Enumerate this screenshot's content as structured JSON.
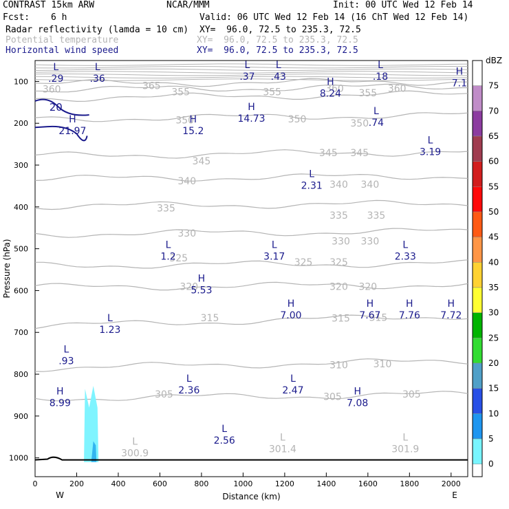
{
  "header": {
    "model": "CONTRAST 15km ARW",
    "org": "NCAR/MMM",
    "init": "Init: 00 UTC Wed 12 Feb 14",
    "fcst_label": "Fcst:",
    "fcst_value": "6 h",
    "valid": "Valid: 06 UTC Wed 12 Feb 14 (16 ChT Wed 12 Feb 14)",
    "fields": [
      {
        "name": "Radar reflectivity (lamda = 10 cm)",
        "xy": "XY=  96.0, 72.5 to 235.3, 72.5"
      },
      {
        "name": "Potential temperature",
        "xy": "XY=  96.0, 72.5 to 235.3, 72.5"
      },
      {
        "name": "Horizontal wind speed",
        "xy": "XY=  96.0, 72.5 to 235.3, 72.5"
      }
    ]
  },
  "colors": {
    "theta": "#b4b4b4",
    "wind": "#1a1a8c",
    "refl_light": "#7ff4ff",
    "refl_mid": "#33b5f0"
  },
  "chart_data": {
    "type": "cross-section",
    "xlabel": "Distance (km)",
    "ylabel": "Pressure (hPa)",
    "xlim": [
      0,
      2080
    ],
    "ylim": [
      1045,
      50
    ],
    "x_ticks": [
      "0",
      "200",
      "400",
      "600",
      "800",
      "1000",
      "1200",
      "1400",
      "1600",
      "1800",
      "2000"
    ],
    "x_tick_values": [
      0,
      200,
      400,
      600,
      800,
      1000,
      1200,
      1400,
      1600,
      1800,
      2000
    ],
    "y_ticks": [
      "100",
      "200",
      "300",
      "400",
      "500",
      "600",
      "700",
      "800",
      "900",
      "1000"
    ],
    "y_tick_values": [
      100,
      200,
      300,
      400,
      500,
      600,
      700,
      800,
      900,
      1000
    ],
    "west_label": "W",
    "east_label": "E",
    "theta_levels": [
      {
        "value": 305,
        "p_left": 858,
        "p_right": 848,
        "labels": [
          {
            "text": "305",
            "x": 620,
            "p": 848
          },
          {
            "text": "305",
            "x": 1430,
            "p": 853
          },
          {
            "text": "305",
            "x": 1810,
            "p": 848
          }
        ]
      },
      {
        "value": 310,
        "p_left": 785,
        "p_right": 768,
        "labels": [
          {
            "text": "310",
            "x": 1460,
            "p": 778
          },
          {
            "text": "310",
            "x": 1670,
            "p": 775
          }
        ]
      },
      {
        "value": 315,
        "p_left": 685,
        "p_right": 660,
        "labels": [
          {
            "text": "315",
            "x": 840,
            "p": 665
          },
          {
            "text": "315",
            "x": 1470,
            "p": 666
          },
          {
            "text": "315",
            "x": 1650,
            "p": 664
          }
        ]
      },
      {
        "value": 320,
        "p_left": 592,
        "p_right": 586,
        "labels": [
          {
            "text": "320",
            "x": 740,
            "p": 590
          },
          {
            "text": "320",
            "x": 1460,
            "p": 590
          },
          {
            "text": "320",
            "x": 1600,
            "p": 590
          }
        ]
      },
      {
        "value": 325,
        "p_left": 540,
        "p_right": 535,
        "labels": [
          {
            "text": "325",
            "x": 690,
            "p": 522
          },
          {
            "text": "325",
            "x": 1290,
            "p": 532
          },
          {
            "text": "325",
            "x": 1460,
            "p": 532
          }
        ]
      },
      {
        "value": 330,
        "p_left": 465,
        "p_right": 458,
        "labels": [
          {
            "text": "330",
            "x": 730,
            "p": 463
          },
          {
            "text": "330",
            "x": 1470,
            "p": 482
          },
          {
            "text": "330",
            "x": 1610,
            "p": 482
          }
        ]
      },
      {
        "value": 335,
        "p_left": 398,
        "p_right": 392,
        "labels": [
          {
            "text": "335",
            "x": 630,
            "p": 403
          },
          {
            "text": "335",
            "x": 1460,
            "p": 420
          },
          {
            "text": "335",
            "x": 1640,
            "p": 420
          }
        ]
      },
      {
        "value": 340,
        "p_left": 333,
        "p_right": 326,
        "labels": [
          {
            "text": "340",
            "x": 730,
            "p": 338
          },
          {
            "text": "340",
            "x": 1460,
            "p": 346
          },
          {
            "text": "340",
            "x": 1610,
            "p": 346
          }
        ]
      },
      {
        "value": 345,
        "p_left": 278,
        "p_right": 268,
        "labels": [
          {
            "text": "345",
            "x": 800,
            "p": 290
          },
          {
            "text": "345",
            "x": 1410,
            "p": 270
          },
          {
            "text": "345",
            "x": 1560,
            "p": 270
          }
        ]
      },
      {
        "value": 350,
        "p_left": 190,
        "p_right": 180,
        "labels": [
          {
            "text": "350",
            "x": 720,
            "p": 192
          },
          {
            "text": "350",
            "x": 1260,
            "p": 190
          },
          {
            "text": "350",
            "x": 1560,
            "p": 200
          }
        ]
      },
      {
        "value": 355,
        "p_left": 140,
        "p_right": 130,
        "labels": [
          {
            "text": "355",
            "x": 700,
            "p": 125
          },
          {
            "text": "355",
            "x": 1140,
            "p": 125
          },
          {
            "text": "355",
            "x": 1600,
            "p": 127
          }
        ]
      },
      {
        "value": 360,
        "p_left": 120,
        "p_right": 112,
        "labels": [
          {
            "text": "360",
            "x": 80,
            "p": 118
          },
          {
            "text": "360",
            "x": 1440,
            "p": 117
          },
          {
            "text": "360",
            "x": 1740,
            "p": 117
          }
        ]
      },
      {
        "value": 365,
        "p_left": 105,
        "p_right": 100,
        "labels": [
          {
            "text": "365",
            "x": 560,
            "p": 110
          }
        ]
      }
    ],
    "theta_surface_minima": [
      {
        "text": "L",
        "value": "300.9",
        "x": 480,
        "p": 975
      },
      {
        "text": "L",
        "value": "301.4",
        "x": 1190,
        "p": 965
      },
      {
        "text": "L",
        "value": "301.9",
        "x": 1780,
        "p": 965
      }
    ],
    "wind_extrema": [
      {
        "type": "L",
        "value": ".29",
        "x": 100,
        "p": 80
      },
      {
        "type": "L",
        "value": ".36",
        "x": 300,
        "p": 80
      },
      {
        "type": "L",
        "value": ".37",
        "x": 1020,
        "p": 75
      },
      {
        "type": "L",
        "value": ".43",
        "x": 1170,
        "p": 75
      },
      {
        "type": "L",
        "value": ".18",
        "x": 1660,
        "p": 75
      },
      {
        "type": "H",
        "value": "7.1",
        "x": 2040,
        "p": 90
      },
      {
        "type": "H",
        "value": "8.24",
        "x": 1420,
        "p": 115
      },
      {
        "type": "H",
        "value": "14.73",
        "x": 1040,
        "p": 175
      },
      {
        "type": "L",
        "value": ".74",
        "x": 1640,
        "p": 185
      },
      {
        "type": "H",
        "value": "21.97",
        "x": 180,
        "p": 205
      },
      {
        "type": "H",
        "value": "15.2",
        "x": 760,
        "p": 205
      },
      {
        "type": "L",
        "value": "3.19",
        "x": 1900,
        "p": 255
      },
      {
        "type": "L",
        "value": "2.31",
        "x": 1330,
        "p": 335
      },
      {
        "type": "L",
        "value": "1.2",
        "x": 640,
        "p": 505
      },
      {
        "type": "L",
        "value": "3.17",
        "x": 1150,
        "p": 505
      },
      {
        "type": "L",
        "value": "2.33",
        "x": 1780,
        "p": 505
      },
      {
        "type": "H",
        "value": "5.53",
        "x": 800,
        "p": 585
      },
      {
        "type": "H",
        "value": "7.00",
        "x": 1230,
        "p": 645
      },
      {
        "type": "H",
        "value": "7.67",
        "x": 1610,
        "p": 645
      },
      {
        "type": "H",
        "value": "7.76",
        "x": 1800,
        "p": 645
      },
      {
        "type": "H",
        "value": "7.72",
        "x": 2000,
        "p": 645
      },
      {
        "type": "L",
        "value": "1.23",
        "x": 360,
        "p": 680
      },
      {
        "type": "L",
        "value": ".93",
        "x": 150,
        "p": 755
      },
      {
        "type": "L",
        "value": "2.36",
        "x": 740,
        "p": 825
      },
      {
        "type": "L",
        "value": "2.47",
        "x": 1240,
        "p": 825
      },
      {
        "type": "H",
        "value": "7.08",
        "x": 1550,
        "p": 855
      },
      {
        "type": "H",
        "value": "8.99",
        "x": 120,
        "p": 855
      },
      {
        "type": "L",
        "value": "2.56",
        "x": 910,
        "p": 945
      }
    ],
    "wind_contour": {
      "value": "20",
      "label_x": 100,
      "label_p": 160
    },
    "reflectivity_colorbar": {
      "unit": "dBZ",
      "levels": [
        75,
        70,
        65,
        60,
        55,
        50,
        45,
        40,
        35,
        30,
        25,
        20,
        15,
        10,
        5,
        0
      ],
      "colors": [
        "#ffffff",
        "#c08cc8",
        "#8c3ca0",
        "#a03c50",
        "#d21e1e",
        "#ff0a0a",
        "#ff5a14",
        "#ff9646",
        "#ffd232",
        "#ffff32",
        "#00b400",
        "#32dc32",
        "#50a0c8",
        "#2850e6",
        "#1e96f0",
        "#78f5ff"
      ]
    }
  }
}
